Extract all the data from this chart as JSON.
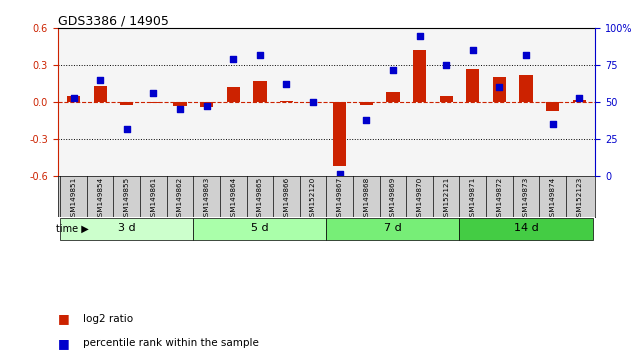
{
  "title": "GDS3386 / 14905",
  "samples": [
    "GSM149851",
    "GSM149854",
    "GSM149855",
    "GSM149861",
    "GSM149862",
    "GSM149863",
    "GSM149864",
    "GSM149865",
    "GSM149866",
    "GSM152120",
    "GSM149867",
    "GSM149868",
    "GSM149869",
    "GSM149870",
    "GSM152121",
    "GSM149871",
    "GSM149872",
    "GSM149873",
    "GSM149874",
    "GSM152123"
  ],
  "log2_ratio": [
    0.05,
    0.13,
    -0.02,
    -0.01,
    -0.03,
    -0.04,
    0.12,
    0.17,
    0.01,
    0.0,
    -0.52,
    -0.02,
    0.08,
    0.42,
    0.05,
    0.27,
    0.2,
    0.22,
    -0.07,
    0.02
  ],
  "percentile": [
    53,
    65,
    32,
    56,
    45,
    47,
    79,
    82,
    62,
    50,
    1,
    38,
    72,
    95,
    75,
    85,
    60,
    82,
    35,
    53
  ],
  "groups": [
    {
      "label": "3 d",
      "start": 0,
      "end": 5,
      "color": "#ccffcc"
    },
    {
      "label": "5 d",
      "start": 5,
      "end": 10,
      "color": "#aaffaa"
    },
    {
      "label": "7 d",
      "start": 10,
      "end": 15,
      "color": "#77ee77"
    },
    {
      "label": "14 d",
      "start": 15,
      "end": 20,
      "color": "#44cc44"
    }
  ],
  "group_colors": [
    "#ccffcc",
    "#aaffaa",
    "#77ee77",
    "#44cc44"
  ],
  "ylim_left": [
    -0.6,
    0.6
  ],
  "ylim_right": [
    0,
    100
  ],
  "yticks_left": [
    -0.6,
    -0.3,
    0.0,
    0.3,
    0.6
  ],
  "yticks_right": [
    0,
    25,
    50,
    75,
    100
  ],
  "ytick_right_labels": [
    "0",
    "25",
    "50",
    "75",
    "100%"
  ],
  "bar_color": "#cc2200",
  "dot_color": "#0000cc",
  "bg_color": "#ffffff",
  "plot_bg": "#f5f5f5",
  "hline_color": "#cc2200",
  "grid_color": "#000000",
  "xlabel": "time",
  "legend_log2": "log2 ratio",
  "legend_pct": "percentile rank within the sample"
}
